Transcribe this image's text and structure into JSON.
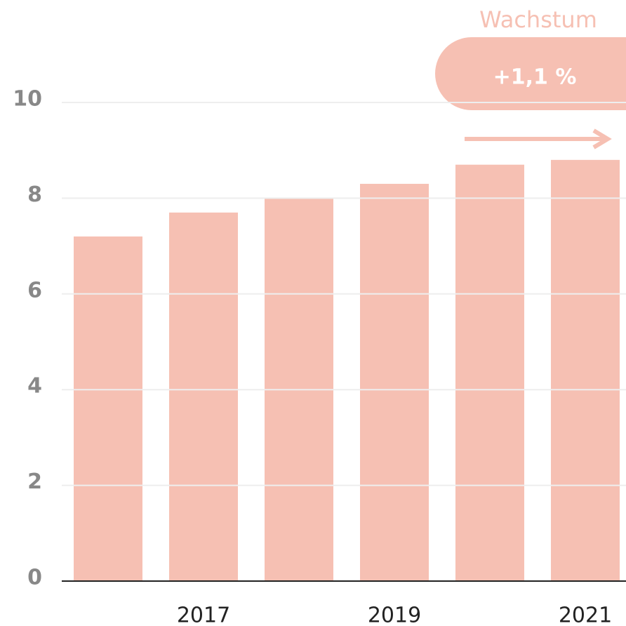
{
  "chart_data": {
    "type": "bar",
    "categories": [
      null,
      "2017",
      null,
      "2019",
      null,
      "2021"
    ],
    "values": [
      7.2,
      7.7,
      8.0,
      8.3,
      8.7,
      8.8
    ],
    "color": "#f6c0b3",
    "ylim": [
      0,
      10
    ],
    "yticks": [
      0,
      2,
      4,
      6,
      8,
      10
    ],
    "grid": true,
    "annotation": {
      "title": "Wachstum",
      "label": "+1,1 %"
    }
  }
}
